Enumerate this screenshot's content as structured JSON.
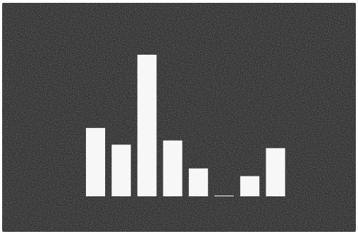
{
  "chart_data": {
    "type": "bar",
    "categories": [
      "",
      "",
      "",
      "",
      "",
      "",
      "",
      ""
    ],
    "values": [
      98,
      74,
      203,
      80,
      40,
      1,
      29,
      69
    ],
    "ylim": [
      0,
      210
    ],
    "title": "",
    "xlabel": "",
    "ylabel": "",
    "grid": false,
    "legend": "none",
    "colors": {
      "background": "#2d2d2d",
      "bar": "#f7f7f7",
      "border": "#ffffff"
    }
  }
}
